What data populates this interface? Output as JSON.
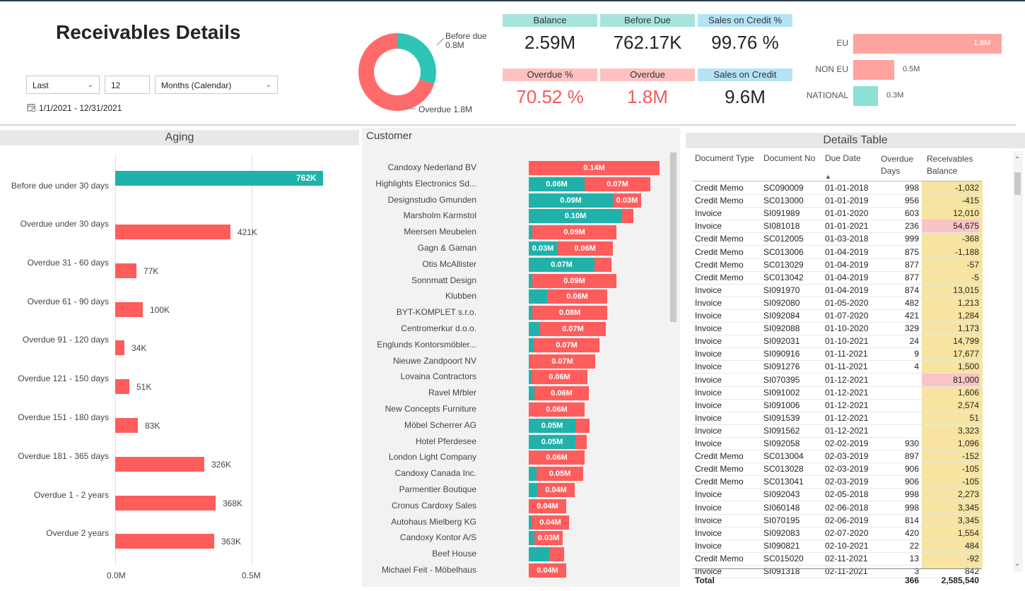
{
  "title": "Receivables Details",
  "filter": {
    "period_type": "Last",
    "period_count": "12",
    "period_unit": "Months (Calendar)",
    "date_range": "1/1/2021 - 12/31/2021"
  },
  "donut": {
    "before_due_label": "Before due",
    "before_due_value": "0.8M",
    "overdue_label": "Overdue 1.8M",
    "before_due_share": 0.3,
    "colors": {
      "before_due": "#2ec4b6",
      "overdue": "#ff6b6b"
    }
  },
  "kpis": {
    "balance": {
      "label": "Balance",
      "value": "2.59M"
    },
    "before_due": {
      "label": "Before Due",
      "value": "762.17K"
    },
    "sales_on_credit_pct": {
      "label": "Sales on Credit %",
      "value": "99.76 %"
    },
    "overdue_pct": {
      "label": "Overdue %",
      "value": "70.52 %"
    },
    "overdue": {
      "label": "Overdue",
      "value": "1.8M"
    },
    "sales_on_credit": {
      "label": "Sales on Credit",
      "value": "9.6M"
    }
  },
  "region_chart": {
    "bars": [
      {
        "label": "EU",
        "value": 1.8,
        "text": "1.8M",
        "color": "#ffa39e"
      },
      {
        "label": "NON EU",
        "value": 0.5,
        "text": "0.5M",
        "color": "#ffa39e"
      },
      {
        "label": "NATIONAL",
        "value": 0.3,
        "text": "0.3M",
        "color": "#8de0d6"
      }
    ],
    "max": 1.8
  },
  "aging": {
    "title": "Aging",
    "axis_ticks": [
      "0.0M",
      "0.5M"
    ],
    "items": [
      {
        "label": "Before due under 30 days",
        "value": 762,
        "text": "762K",
        "color": "#20b2aa"
      },
      {
        "label": "Overdue under 30 days",
        "value": 421,
        "text": "421K",
        "color": "#ff5c5c"
      },
      {
        "label": "Overdue 31 - 60 days",
        "value": 77,
        "text": "77K",
        "color": "#ff5c5c"
      },
      {
        "label": "Overdue 61 - 90 days",
        "value": 100,
        "text": "100K",
        "color": "#ff5c5c"
      },
      {
        "label": "Overdue 91 - 120 days",
        "value": 34,
        "text": "34K",
        "color": "#ff5c5c"
      },
      {
        "label": "Overdue 121 - 150 days",
        "value": 51,
        "text": "51K",
        "color": "#ff5c5c"
      },
      {
        "label": "Overdue 151 - 180 days",
        "value": 83,
        "text": "83K",
        "color": "#ff5c5c"
      },
      {
        "label": "Overdue 181 - 365 days",
        "value": 326,
        "text": "326K",
        "color": "#ff5c5c"
      },
      {
        "label": "Overdue 1 - 2 years",
        "value": 368,
        "text": "368K",
        "color": "#ff5c5c"
      },
      {
        "label": "Overdue 2 years",
        "value": 363,
        "text": "363K",
        "color": "#ff5c5c"
      }
    ]
  },
  "customer": {
    "title": "Customer",
    "teal": "#20b2aa",
    "red": "#ff5c5c",
    "items": [
      {
        "name": "Candoxy Nederland BV",
        "before": 0,
        "overdue": 0.14,
        "before_text": "",
        "overdue_text": "0.14M"
      },
      {
        "name": "Highlights Electronics Sd...",
        "before": 0.06,
        "overdue": 0.07,
        "before_text": "0.06M",
        "overdue_text": "0.07M"
      },
      {
        "name": "Designstudio Gmunden",
        "before": 0.09,
        "overdue": 0.03,
        "before_text": "0.09M",
        "overdue_text": "0.03M"
      },
      {
        "name": "Marsholm Karmstol",
        "before": 0.1,
        "overdue": 0.012,
        "before_text": "0.10M",
        "overdue_text": ""
      },
      {
        "name": "Meersen Meubelen",
        "before": 0.004,
        "overdue": 0.09,
        "before_text": "",
        "overdue_text": "0.09M"
      },
      {
        "name": "Gagn & Gaman",
        "before": 0.03,
        "overdue": 0.06,
        "before_text": "0.03M",
        "overdue_text": "0.06M"
      },
      {
        "name": "Otis McAllister",
        "before": 0.07,
        "overdue": 0.018,
        "before_text": "0.07M",
        "overdue_text": ""
      },
      {
        "name": "Sonnmatt Design",
        "before": 0.004,
        "overdue": 0.09,
        "before_text": "",
        "overdue_text": "0.09M"
      },
      {
        "name": "Klubben",
        "before": 0.02,
        "overdue": 0.064,
        "before_text": "",
        "overdue_text": "0.06M"
      },
      {
        "name": "BYT-KOMPLET s.r.o.",
        "before": 0.004,
        "overdue": 0.08,
        "before_text": "",
        "overdue_text": "0.08M"
      },
      {
        "name": "Centromerkur d.o.o.",
        "before": 0.012,
        "overdue": 0.07,
        "before_text": "",
        "overdue_text": "0.07M"
      },
      {
        "name": "Englunds Kontorsmöbler...",
        "before": 0.005,
        "overdue": 0.07,
        "before_text": "",
        "overdue_text": "0.07M"
      },
      {
        "name": "Nieuwe Zandpoort NV",
        "before": 0.001,
        "overdue": 0.07,
        "before_text": "",
        "overdue_text": "0.07M"
      },
      {
        "name": "Lovaina Contractors",
        "before": 0.003,
        "overdue": 0.06,
        "before_text": "",
        "overdue_text": "0.06M"
      },
      {
        "name": "Ravel Mŕbler",
        "before": 0.006,
        "overdue": 0.058,
        "before_text": "",
        "overdue_text": "0.06M"
      },
      {
        "name": "New Concepts Furniture",
        "before": 0,
        "overdue": 0.06,
        "before_text": "",
        "overdue_text": "0.06M"
      },
      {
        "name": "Möbel Scherrer AG",
        "before": 0.05,
        "overdue": 0.015,
        "before_text": "0.05M",
        "overdue_text": ""
      },
      {
        "name": "Hotel Pferdesee",
        "before": 0.05,
        "overdue": 0.012,
        "before_text": "0.05M",
        "overdue_text": ""
      },
      {
        "name": "London Light Company",
        "before": 0,
        "overdue": 0.06,
        "before_text": "",
        "overdue_text": "0.06M"
      },
      {
        "name": "Candoxy Canada Inc.",
        "before": 0.008,
        "overdue": 0.05,
        "before_text": "",
        "overdue_text": "0.05M"
      },
      {
        "name": "Parmentier Boutique",
        "before": 0.009,
        "overdue": 0.04,
        "before_text": "",
        "overdue_text": "0.04M"
      },
      {
        "name": "Cronus Cardoxy Sales",
        "before": 0,
        "overdue": 0.04,
        "before_text": "",
        "overdue_text": "0.04M"
      },
      {
        "name": "Autohaus Mielberg KG",
        "before": 0.003,
        "overdue": 0.04,
        "before_text": "",
        "overdue_text": "0.04M"
      },
      {
        "name": "Candoxy Kontor A/S",
        "before": 0.006,
        "overdue": 0.03,
        "before_text": "",
        "overdue_text": "0.03M"
      },
      {
        "name": "Beef House",
        "before": 0.022,
        "overdue": 0.016,
        "before_text": "",
        "overdue_text": ""
      },
      {
        "name": "Michael Feit - Möbelhaus",
        "before": 0,
        "overdue": 0.04,
        "before_text": "",
        "overdue_text": "0.04M"
      }
    ]
  },
  "details": {
    "title": "Details Table",
    "headers": {
      "doc_type": "Document Type",
      "doc_no": "Document No",
      "due_date": "Due Date",
      "overdue_days_1": "Overdue",
      "overdue_days_2": "Days",
      "balance_1": "Receivables",
      "balance_2": "Balance"
    },
    "rows": [
      {
        "type": "Credit Memo",
        "no": "SC090009",
        "due": "01-01-2018",
        "days": "998",
        "bal": "-1,032",
        "hl": false
      },
      {
        "type": "Credit Memo",
        "no": "SC013000",
        "due": "01-01-2019",
        "days": "956",
        "bal": "-415",
        "hl": false
      },
      {
        "type": "Invoice",
        "no": "SI091989",
        "due": "01-01-2020",
        "days": "603",
        "bal": "12,010",
        "hl": false
      },
      {
        "type": "Invoice",
        "no": "SI081018",
        "due": "01-01-2021",
        "days": "236",
        "bal": "54,675",
        "hl": true
      },
      {
        "type": "Credit Memo",
        "no": "SC012005",
        "due": "01-03-2018",
        "days": "999",
        "bal": "-368",
        "hl": false
      },
      {
        "type": "Credit Memo",
        "no": "SC013006",
        "due": "01-04-2019",
        "days": "875",
        "bal": "-1,188",
        "hl": false
      },
      {
        "type": "Credit Memo",
        "no": "SC013029",
        "due": "01-04-2019",
        "days": "877",
        "bal": "-57",
        "hl": false
      },
      {
        "type": "Credit Memo",
        "no": "SC013042",
        "due": "01-04-2019",
        "days": "877",
        "bal": "-5",
        "hl": false
      },
      {
        "type": "Invoice",
        "no": "SI091970",
        "due": "01-04-2019",
        "days": "874",
        "bal": "13,015",
        "hl": false
      },
      {
        "type": "Invoice",
        "no": "SI092080",
        "due": "01-05-2020",
        "days": "482",
        "bal": "1,213",
        "hl": false
      },
      {
        "type": "Invoice",
        "no": "SI092084",
        "due": "01-07-2020",
        "days": "421",
        "bal": "1,284",
        "hl": false
      },
      {
        "type": "Invoice",
        "no": "SI092088",
        "due": "01-10-2020",
        "days": "329",
        "bal": "1,173",
        "hl": false
      },
      {
        "type": "Invoice",
        "no": "SI092031",
        "due": "01-10-2021",
        "days": "24",
        "bal": "14,799",
        "hl": false
      },
      {
        "type": "Invoice",
        "no": "SI090916",
        "due": "01-11-2021",
        "days": "9",
        "bal": "17,677",
        "hl": false
      },
      {
        "type": "Invoice",
        "no": "SI091276",
        "due": "01-11-2021",
        "days": "4",
        "bal": "1,500",
        "hl": false
      },
      {
        "type": "Invoice",
        "no": "SI070395",
        "due": "01-12-2021",
        "days": "",
        "bal": "81,000",
        "hl": true
      },
      {
        "type": "Invoice",
        "no": "SI091002",
        "due": "01-12-2021",
        "days": "",
        "bal": "1,606",
        "hl": false
      },
      {
        "type": "Invoice",
        "no": "SI091006",
        "due": "01-12-2021",
        "days": "",
        "bal": "2,574",
        "hl": false
      },
      {
        "type": "Invoice",
        "no": "SI091539",
        "due": "01-12-2021",
        "days": "",
        "bal": "51",
        "hl": false
      },
      {
        "type": "Invoice",
        "no": "SI091562",
        "due": "01-12-2021",
        "days": "",
        "bal": "3,323",
        "hl": false
      },
      {
        "type": "Invoice",
        "no": "SI092058",
        "due": "02-02-2019",
        "days": "930",
        "bal": "1,096",
        "hl": false
      },
      {
        "type": "Credit Memo",
        "no": "SC013004",
        "due": "02-03-2019",
        "days": "897",
        "bal": "-152",
        "hl": false
      },
      {
        "type": "Credit Memo",
        "no": "SC013028",
        "due": "02-03-2019",
        "days": "906",
        "bal": "-105",
        "hl": false
      },
      {
        "type": "Credit Memo",
        "no": "SC013041",
        "due": "02-03-2019",
        "days": "906",
        "bal": "-105",
        "hl": false
      },
      {
        "type": "Invoice",
        "no": "SI092043",
        "due": "02-05-2018",
        "days": "998",
        "bal": "2,273",
        "hl": false
      },
      {
        "type": "Invoice",
        "no": "SI060148",
        "due": "02-06-2018",
        "days": "998",
        "bal": "3,345",
        "hl": false
      },
      {
        "type": "Invoice",
        "no": "SI070195",
        "due": "02-06-2019",
        "days": "814",
        "bal": "3,345",
        "hl": false
      },
      {
        "type": "Invoice",
        "no": "SI092083",
        "due": "02-07-2020",
        "days": "420",
        "bal": "1,554",
        "hl": false
      },
      {
        "type": "Invoice",
        "no": "SI090821",
        "due": "02-10-2021",
        "days": "22",
        "bal": "484",
        "hl": false
      },
      {
        "type": "Credit Memo",
        "no": "SC015020",
        "due": "02-11-2021",
        "days": "13",
        "bal": "-92",
        "hl": false
      },
      {
        "type": "Invoice",
        "no": "SI091318",
        "due": "02-11-2021",
        "days": "3",
        "bal": "842",
        "hl": false
      }
    ],
    "total": {
      "label": "Total",
      "days": "366",
      "bal": "2,585,540"
    },
    "colors": {
      "balance_bg": "#f6e4a0",
      "highlight_bg": "#f8c4c4"
    }
  }
}
